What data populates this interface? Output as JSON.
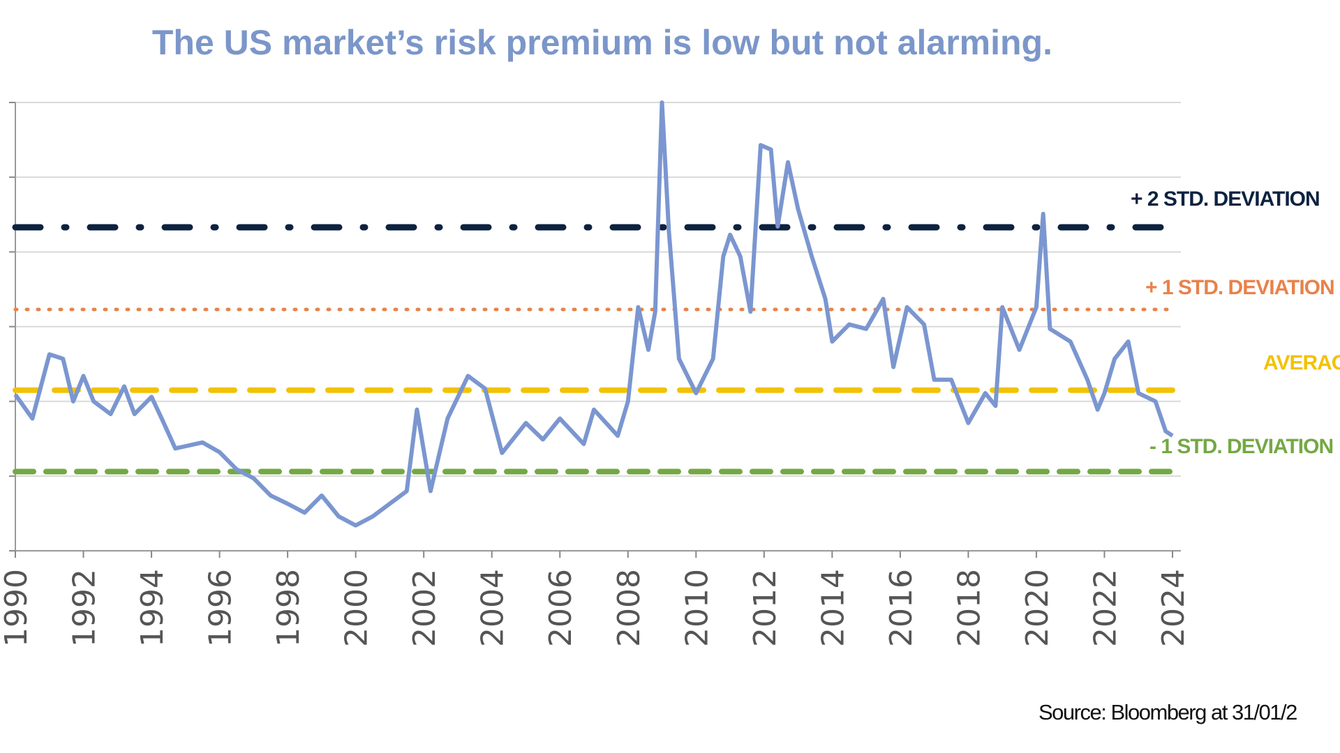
{
  "chart_data": {
    "type": "line",
    "title": "The US market’s risk premium is low but not alarming.",
    "source": "Source: Bloomberg at 31/01/2",
    "xlabel": "",
    "ylabel": "",
    "xlim": [
      1990,
      2024
    ],
    "ylim": [
      0,
      6
    ],
    "grid": true,
    "x_ticks": [
      "1990",
      "1992",
      "1994",
      "1996",
      "1998",
      "2000",
      "2002",
      "2004",
      "2006",
      "2008",
      "2010",
      "2012",
      "2014",
      "2016",
      "2018",
      "2020",
      "2022",
      "2024"
    ],
    "series": [
      {
        "name": "US market risk premium",
        "color": "#7b96d0",
        "points": [
          [
            1990,
            2.09
          ],
          [
            1990.5,
            1.77
          ],
          [
            1991,
            2.63
          ],
          [
            1991.4,
            2.57
          ],
          [
            1991.7,
            2.0
          ],
          [
            1992,
            2.34
          ],
          [
            1992.3,
            2.0
          ],
          [
            1992.8,
            1.83
          ],
          [
            1993.2,
            2.2
          ],
          [
            1993.5,
            1.83
          ],
          [
            1994,
            2.06
          ],
          [
            1994.3,
            1.77
          ],
          [
            1994.7,
            1.37
          ],
          [
            1995,
            1.4
          ],
          [
            1995.5,
            1.45
          ],
          [
            1996,
            1.32
          ],
          [
            1996.5,
            1.09
          ],
          [
            1997,
            0.97
          ],
          [
            1997.5,
            0.74
          ],
          [
            1998,
            0.63
          ],
          [
            1998.5,
            0.51
          ],
          [
            1999,
            0.74
          ],
          [
            1999.5,
            0.46
          ],
          [
            2000,
            0.34
          ],
          [
            2000.5,
            0.46
          ],
          [
            2001,
            0.63
          ],
          [
            2001.5,
            0.8
          ],
          [
            2001.8,
            1.89
          ],
          [
            2002.2,
            0.8
          ],
          [
            2002.7,
            1.77
          ],
          [
            2003.3,
            2.34
          ],
          [
            2003.8,
            2.17
          ],
          [
            2004.3,
            1.31
          ],
          [
            2005,
            1.71
          ],
          [
            2005.5,
            1.49
          ],
          [
            2006,
            1.77
          ],
          [
            2006.7,
            1.43
          ],
          [
            2007,
            1.89
          ],
          [
            2007.7,
            1.54
          ],
          [
            2008,
            2.0
          ],
          [
            2008.3,
            3.26
          ],
          [
            2008.6,
            2.69
          ],
          [
            2008.8,
            3.2
          ],
          [
            2009,
            6.0
          ],
          [
            2009.2,
            4.29
          ],
          [
            2009.5,
            2.57
          ],
          [
            2010,
            2.11
          ],
          [
            2010.5,
            2.57
          ],
          [
            2010.8,
            3.94
          ],
          [
            2011,
            4.23
          ],
          [
            2011.3,
            3.94
          ],
          [
            2011.6,
            3.2
          ],
          [
            2011.9,
            5.43
          ],
          [
            2012.2,
            5.37
          ],
          [
            2012.4,
            4.34
          ],
          [
            2012.7,
            5.2
          ],
          [
            2013,
            4.57
          ],
          [
            2013.4,
            3.94
          ],
          [
            2013.8,
            3.37
          ],
          [
            2014,
            2.8
          ],
          [
            2014.5,
            3.03
          ],
          [
            2015,
            2.97
          ],
          [
            2015.5,
            3.37
          ],
          [
            2015.8,
            2.46
          ],
          [
            2016.2,
            3.26
          ],
          [
            2016.7,
            3.03
          ],
          [
            2017,
            2.29
          ],
          [
            2017.5,
            2.29
          ],
          [
            2018,
            1.71
          ],
          [
            2018.5,
            2.11
          ],
          [
            2018.8,
            1.94
          ],
          [
            2019,
            3.26
          ],
          [
            2019.5,
            2.69
          ],
          [
            2020,
            3.26
          ],
          [
            2020.2,
            4.51
          ],
          [
            2020.4,
            2.97
          ],
          [
            2021,
            2.8
          ],
          [
            2021.5,
            2.29
          ],
          [
            2021.8,
            1.89
          ],
          [
            2022,
            2.11
          ],
          [
            2022.3,
            2.57
          ],
          [
            2022.7,
            2.8
          ],
          [
            2023,
            2.11
          ],
          [
            2023.5,
            2.0
          ],
          [
            2023.8,
            1.6
          ],
          [
            2024,
            1.54
          ]
        ]
      }
    ],
    "reference_lines": [
      {
        "label": "+ 2 STD. DEVIATION",
        "value": 4.33,
        "color": "#0d2240",
        "style": "dash-dot"
      },
      {
        "label": "+ 1 STD. DEVIATION",
        "value": 3.23,
        "color": "#e8824a",
        "style": "dotted"
      },
      {
        "label": "AVERAGE",
        "value": 2.15,
        "color": "#f2c200",
        "style": "dashed"
      },
      {
        "label": "- 1 STD. DEVIATION",
        "value": 1.06,
        "color": "#74a844",
        "style": "dashed"
      }
    ]
  }
}
